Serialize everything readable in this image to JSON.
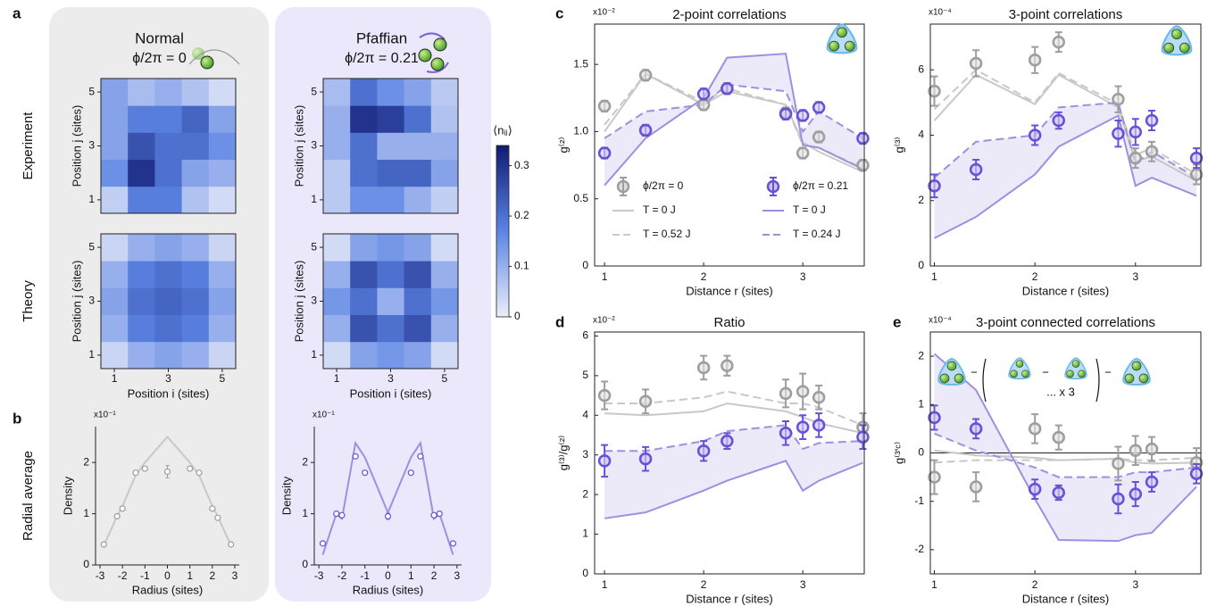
{
  "panel_labels": [
    "a",
    "b",
    "c",
    "d",
    "e"
  ],
  "chart_data": [
    {
      "type": "heatmap",
      "title": "Normal",
      "subtitle": "ϕ/2π = 0",
      "row_label": "Experiment",
      "ylabel": "Position j (sites)",
      "xlim": [
        0.5,
        5.5
      ],
      "ylim": [
        0.5,
        5.5
      ],
      "yticks": [
        1,
        3,
        5
      ],
      "values": [
        [
          0.05,
          0.18,
          0.18,
          0.07,
          0.03
        ],
        [
          0.15,
          0.3,
          0.2,
          0.12,
          0.1
        ],
        [
          0.12,
          0.25,
          0.2,
          0.2,
          0.15
        ],
        [
          0.12,
          0.18,
          0.18,
          0.22,
          0.12
        ],
        [
          0.12,
          0.08,
          0.1,
          0.07,
          0.03
        ]
      ]
    },
    {
      "type": "heatmap",
      "title": "Pfaffian",
      "subtitle": "ϕ/2π = 0.21",
      "ylabel": "Position j (sites)",
      "xlim": [
        0.5,
        5.5
      ],
      "ylim": [
        0.5,
        5.5
      ],
      "yticks": [
        1,
        3,
        5
      ],
      "values": [
        [
          0.06,
          0.15,
          0.15,
          0.1,
          0.05
        ],
        [
          0.06,
          0.2,
          0.22,
          0.22,
          0.12
        ],
        [
          0.1,
          0.2,
          0.1,
          0.1,
          0.1
        ],
        [
          0.1,
          0.3,
          0.28,
          0.2,
          0.07
        ],
        [
          0.08,
          0.2,
          0.15,
          0.12,
          0.06
        ]
      ]
    },
    {
      "type": "heatmap",
      "row_label": "Theory",
      "ylabel": "Position j (sites)",
      "xlabel": "Position i (sites)",
      "xlim": [
        0.5,
        5.5
      ],
      "ylim": [
        0.5,
        5.5
      ],
      "xticks": [
        1,
        3,
        5
      ],
      "yticks": [
        1,
        3,
        5
      ],
      "values": [
        [
          0.04,
          0.1,
          0.12,
          0.1,
          0.04
        ],
        [
          0.1,
          0.18,
          0.2,
          0.18,
          0.1
        ],
        [
          0.12,
          0.2,
          0.22,
          0.2,
          0.12
        ],
        [
          0.1,
          0.18,
          0.2,
          0.18,
          0.1
        ],
        [
          0.04,
          0.1,
          0.12,
          0.1,
          0.04
        ]
      ]
    },
    {
      "type": "heatmap",
      "ylabel": "Position j (sites)",
      "xlabel": "Position i (sites)",
      "xlim": [
        0.5,
        5.5
      ],
      "ylim": [
        0.5,
        5.5
      ],
      "xticks": [
        1,
        3,
        5
      ],
      "yticks": [
        1,
        3,
        5
      ],
      "values": [
        [
          0.03,
          0.12,
          0.14,
          0.12,
          0.03
        ],
        [
          0.1,
          0.25,
          0.2,
          0.25,
          0.1
        ],
        [
          0.14,
          0.2,
          0.1,
          0.2,
          0.14
        ],
        [
          0.1,
          0.25,
          0.2,
          0.25,
          0.1
        ],
        [
          0.03,
          0.12,
          0.14,
          0.12,
          0.03
        ]
      ]
    },
    {
      "type": "colorbar",
      "label": "⟨nᵢⱼ⟩",
      "lim": [
        0,
        0.34
      ],
      "ticks": [
        0,
        0.1,
        0.2,
        0.3
      ],
      "colormap": [
        "#eceef9",
        "#5b84e4",
        "#101a72"
      ]
    },
    {
      "type": "line",
      "row_label": "Radial average",
      "scale_label": "x10⁻¹",
      "xlabel": "Radius (sites)",
      "ylabel": "Density",
      "xlim": [
        -3.2,
        3.2
      ],
      "xticks": [
        -3,
        -2,
        -1,
        0,
        1,
        2,
        3
      ],
      "ylim": [
        0,
        2.7
      ],
      "yticks": [
        0,
        1,
        2
      ],
      "x": [
        -2.83,
        -2.24,
        -2,
        -1.41,
        -1,
        0,
        1,
        1.41,
        2,
        2.24,
        2.83
      ],
      "series": [
        {
          "kind": "solid",
          "color": "#c8c8c8",
          "values": [
            0.38,
            0.95,
            1.15,
            1.75,
            2.0,
            2.5,
            2.0,
            1.75,
            1.15,
            0.95,
            0.38
          ]
        },
        {
          "kind": "marker",
          "color": "#9e9e9e",
          "values": [
            0.4,
            0.95,
            1.1,
            1.8,
            1.88,
            1.82,
            1.88,
            1.8,
            1.1,
            0.92,
            0.4
          ],
          "errors": [
            0.03,
            0.03,
            0.03,
            0.04,
            0.04,
            0.12,
            0.04,
            0.04,
            0.03,
            0.03,
            0.03
          ]
        }
      ]
    },
    {
      "type": "line",
      "scale_label": "x10⁻¹",
      "xlabel": "Radius (sites)",
      "ylabel": "Density",
      "xlim": [
        -3.2,
        3.2
      ],
      "xticks": [
        -3,
        -2,
        -1,
        0,
        1,
        2,
        3
      ],
      "ylim": [
        0,
        2.7
      ],
      "yticks": [
        0,
        1,
        2
      ],
      "x": [
        -2.83,
        -2.24,
        -2,
        -1.41,
        -1,
        0,
        1,
        1.41,
        2,
        2.24,
        2.83
      ],
      "series": [
        {
          "kind": "solid",
          "color": "#9d90e0",
          "values": [
            0.2,
            1.0,
            0.9,
            2.38,
            2.1,
            1.02,
            2.1,
            2.38,
            0.9,
            1.0,
            0.2
          ]
        },
        {
          "kind": "marker",
          "color": "#6a50d6",
          "values": [
            0.42,
            1.0,
            0.97,
            2.12,
            1.8,
            0.95,
            1.8,
            2.12,
            0.97,
            1.0,
            0.42
          ],
          "errors": [
            0.03,
            0.03,
            0.03,
            0.04,
            0.04,
            0.06,
            0.04,
            0.04,
            0.03,
            0.03,
            0.03
          ]
        }
      ]
    },
    {
      "type": "line",
      "title": "2-point correlations",
      "scale_label": "x10⁻²",
      "xlabel": "Distance r (sites)",
      "ylabel": "g⁽²⁾",
      "xlim": [
        0.9,
        3.62
      ],
      "xticks": [
        1,
        2,
        3
      ],
      "ylim": [
        0,
        1.8
      ],
      "yticks": [
        0,
        0.5,
        {
          "value": 1,
          "label": "1.0"
        },
        1.5
      ],
      "legend": "lower left",
      "x": [
        1,
        1.414,
        2,
        2.236,
        2.828,
        3,
        3.162,
        3.606
      ],
      "series": [
        {
          "name": "ϕ/2π = 0",
          "kind": "marker",
          "color": "#9e9e9e",
          "values": [
            1.19,
            1.42,
            1.2,
            1.32,
            1.14,
            0.84,
            0.96,
            0.75
          ],
          "errors": [
            0.04,
            0.04,
            0.04,
            0.04,
            0.04,
            0.04,
            0.04,
            0.04
          ]
        },
        {
          "name": "T = 0 J",
          "kind": "solid",
          "color": "#c8c8c8",
          "values": [
            1.0,
            1.43,
            1.2,
            1.3,
            1.2,
            0.92,
            0.85,
            0.7
          ]
        },
        {
          "name": "T = 0.52 J",
          "kind": "dashed",
          "color": "#c8c8c8",
          "values": [
            1.05,
            1.43,
            1.22,
            1.32,
            1.2,
            0.9,
            0.88,
            0.73
          ]
        },
        {
          "name": "ϕ/2π = 0.21",
          "kind": "marker",
          "color": "#6a50d6",
          "values": [
            0.84,
            1.01,
            1.28,
            1.32,
            1.13,
            1.12,
            1.18,
            0.95
          ],
          "errors": [
            0.04,
            0.04,
            0.04,
            0.04,
            0.04,
            0.04,
            0.04,
            0.04
          ]
        },
        {
          "name": "T = 0 J",
          "kind": "solid",
          "color": "#9d90e0",
          "shade": "#ece9f9",
          "values": [
            0.6,
            0.95,
            1.25,
            1.55,
            1.58,
            0.9,
            0.88,
            0.72
          ]
        },
        {
          "name": "T = 0.24 J",
          "kind": "dashed",
          "color": "#9d90e0",
          "values": [
            0.95,
            1.15,
            1.2,
            1.35,
            1.3,
            1.0,
            1.15,
            0.95
          ]
        }
      ]
    },
    {
      "type": "line",
      "title": "3-point correlations",
      "scale_label": "x10⁻⁴",
      "xlabel": "Distance r (sites)",
      "ylabel": "g⁽³⁾",
      "xlim": [
        0.96,
        3.65
      ],
      "xticks": [
        1,
        2,
        3
      ],
      "ylim": [
        0,
        7.4
      ],
      "yticks": [
        0,
        2,
        4,
        6
      ],
      "x": [
        1,
        1.414,
        2,
        2.236,
        2.828,
        3,
        3.162,
        3.606
      ],
      "series": [
        {
          "kind": "marker",
          "color": "#9e9e9e",
          "values": [
            5.35,
            6.2,
            6.3,
            6.85,
            5.1,
            3.3,
            3.5,
            2.8
          ],
          "errors": [
            0.45,
            0.4,
            0.4,
            0.3,
            0.4,
            0.3,
            0.3,
            0.3
          ]
        },
        {
          "kind": "solid",
          "color": "#c8c8c8",
          "values": [
            4.45,
            5.85,
            4.95,
            5.85,
            4.85,
            3.2,
            3.35,
            2.6
          ]
        },
        {
          "kind": "dashed",
          "color": "#c8c8c8",
          "values": [
            4.8,
            6.0,
            5.0,
            5.9,
            4.95,
            3.4,
            3.6,
            2.8
          ]
        },
        {
          "kind": "marker",
          "color": "#6a50d6",
          "values": [
            2.45,
            2.95,
            4.0,
            4.45,
            4.05,
            4.1,
            4.45,
            3.3
          ],
          "errors": [
            0.35,
            0.3,
            0.3,
            0.25,
            0.4,
            0.4,
            0.3,
            0.3
          ]
        },
        {
          "kind": "solid",
          "color": "#9d90e0",
          "shade": "#ece9f9",
          "values": [
            0.85,
            1.5,
            2.8,
            3.65,
            4.6,
            2.45,
            2.7,
            2.15
          ]
        },
        {
          "kind": "dashed",
          "color": "#9d90e0",
          "values": [
            2.7,
            3.8,
            4.0,
            4.85,
            5.0,
            3.15,
            3.5,
            2.7
          ]
        }
      ]
    },
    {
      "type": "line",
      "title": "Ratio",
      "scale_label": "x10⁻²",
      "xlabel": "Distance r (sites)",
      "ylabel": "g⁽³⁾/g⁽²⁾",
      "xlim": [
        0.9,
        3.62
      ],
      "xticks": [
        1,
        2,
        3
      ],
      "ylim": [
        0,
        6.1
      ],
      "yticks": [
        0,
        1,
        2,
        3,
        4,
        5,
        6
      ],
      "x": [
        1,
        1.414,
        2,
        2.236,
        2.828,
        3,
        3.162,
        3.606
      ],
      "series": [
        {
          "kind": "marker",
          "color": "#9e9e9e",
          "values": [
            4.5,
            4.35,
            5.2,
            5.25,
            4.55,
            4.6,
            4.45,
            3.7
          ],
          "errors": [
            0.35,
            0.3,
            0.3,
            0.25,
            0.35,
            0.45,
            0.3,
            0.35
          ]
        },
        {
          "kind": "solid",
          "color": "#c8c8c8",
          "values": [
            4.05,
            4.0,
            4.1,
            4.3,
            4.1,
            3.95,
            3.8,
            3.55
          ]
        },
        {
          "kind": "dashed",
          "color": "#c8c8c8",
          "values": [
            4.3,
            4.3,
            4.45,
            4.6,
            4.3,
            4.3,
            4.2,
            3.75
          ]
        },
        {
          "kind": "marker",
          "color": "#6a50d6",
          "values": [
            2.85,
            2.9,
            3.1,
            3.35,
            3.55,
            3.7,
            3.75,
            3.45
          ],
          "errors": [
            0.4,
            0.3,
            0.25,
            0.2,
            0.3,
            0.3,
            0.3,
            0.3
          ]
        },
        {
          "kind": "solid",
          "color": "#9d90e0",
          "shade": "#ece9f9",
          "values": [
            1.4,
            1.55,
            2.1,
            2.35,
            2.85,
            2.1,
            2.35,
            2.8
          ]
        },
        {
          "kind": "dashed",
          "color": "#9d90e0",
          "values": [
            3.1,
            3.1,
            3.35,
            3.6,
            3.75,
            3.15,
            3.3,
            3.35
          ]
        }
      ]
    },
    {
      "type": "line",
      "title": "3-point connected correlations",
      "scale_label": "x10⁻⁴",
      "xlabel": "Distance r (sites)",
      "ylabel": "g⁽³'ᶜ⁾",
      "xlim": [
        0.96,
        3.65
      ],
      "xticks": [
        1,
        2,
        3
      ],
      "ylim": [
        -2.5,
        2.5
      ],
      "yticks": [
        -2,
        -1,
        0,
        1,
        2
      ],
      "zero_line": true,
      "annotations": [
        "−",
        "−",
        "... x 3",
        "−"
      ],
      "x": [
        1,
        1.414,
        2,
        2.236,
        2.828,
        3,
        3.162,
        3.606
      ],
      "series": [
        {
          "kind": "marker",
          "color": "#9e9e9e",
          "values": [
            -0.5,
            -0.7,
            0.5,
            0.32,
            -0.22,
            0.05,
            0.08,
            -0.2
          ],
          "errors": [
            0.35,
            0.3,
            0.3,
            0.25,
            0.35,
            0.3,
            0.25,
            0.3
          ]
        },
        {
          "kind": "solid",
          "color": "#c8c8c8",
          "values": [
            0.05,
            -0.05,
            -0.1,
            -0.15,
            -0.12,
            -0.2,
            -0.22,
            -0.2
          ]
        },
        {
          "kind": "dashed",
          "color": "#c8c8c8",
          "values": [
            -0.2,
            -0.15,
            -0.15,
            -0.15,
            -0.12,
            -0.15,
            -0.15,
            -0.1
          ]
        },
        {
          "kind": "marker",
          "color": "#6a50d6",
          "values": [
            0.73,
            0.5,
            -0.75,
            -0.82,
            -0.95,
            -0.85,
            -0.6,
            -0.43
          ],
          "errors": [
            0.25,
            0.2,
            0.2,
            0.15,
            0.3,
            0.25,
            0.2,
            0.2
          ]
        },
        {
          "kind": "solid",
          "color": "#9d90e0",
          "shade": "#ece9f9",
          "values": [
            2.05,
            1.3,
            -0.95,
            -1.8,
            -1.82,
            -1.7,
            -1.65,
            -0.7
          ]
        },
        {
          "kind": "dashed",
          "color": "#9d90e0",
          "values": [
            0.4,
            0.05,
            -0.3,
            -0.5,
            -0.5,
            -0.4,
            -0.4,
            -0.3
          ]
        }
      ]
    }
  ]
}
